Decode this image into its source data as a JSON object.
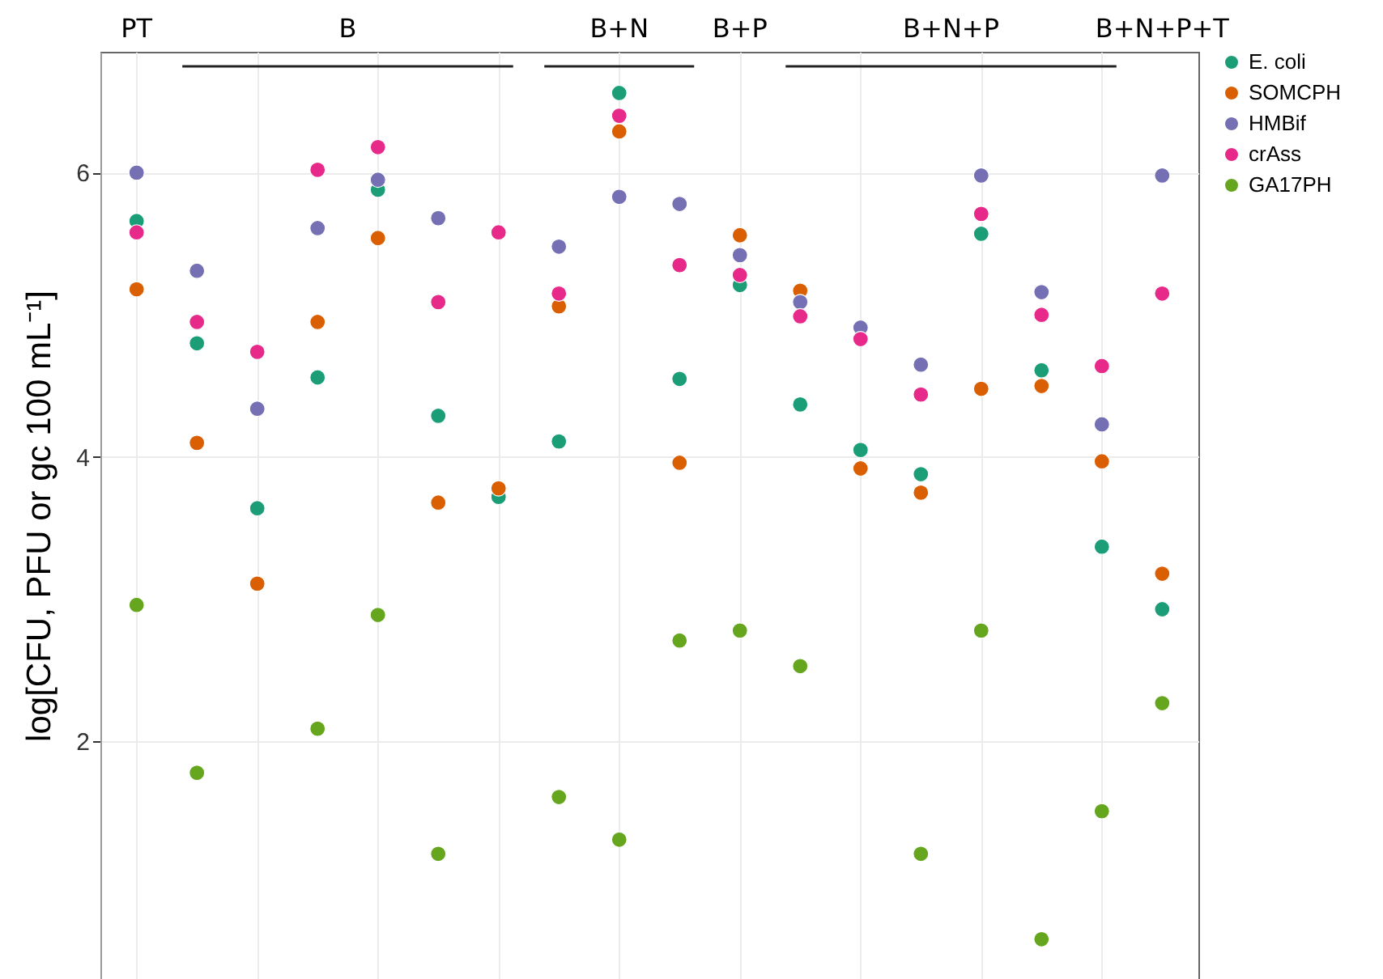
{
  "chart_data": {
    "type": "scatter",
    "ylabel": "log[CFU, PFU or gc 100 mL⁻¹]",
    "categories": [
      null,
      null,
      null,
      null,
      null,
      null,
      null,
      null,
      null,
      null,
      null,
      null,
      null,
      null,
      null,
      null,
      null,
      null
    ],
    "series": [
      {
        "name": "E. coli",
        "color": "#1b9e77",
        "values": [
          5.66,
          4.8,
          3.64,
          4.56,
          5.88,
          4.29,
          3.72,
          4.11,
          6.56,
          4.55,
          5.21,
          4.37,
          4.05,
          3.88,
          5.57,
          4.61,
          3.37,
          2.93
        ]
      },
      {
        "name": "SOMCPH",
        "color": "#d95f02",
        "values": [
          5.18,
          4.1,
          3.11,
          4.95,
          5.54,
          3.68,
          3.78,
          5.06,
          6.29,
          3.96,
          5.56,
          5.17,
          3.92,
          3.75,
          4.48,
          4.5,
          3.97,
          3.18
        ]
      },
      {
        "name": "HMBif",
        "color": "#7570b3",
        "values": [
          6.0,
          5.31,
          4.34,
          5.61,
          5.95,
          5.68,
          null,
          5.48,
          5.83,
          5.78,
          5.42,
          5.09,
          4.91,
          4.65,
          5.98,
          5.16,
          4.23,
          5.98
        ]
      },
      {
        "name": "crAss",
        "color": "#e7298a",
        "values": [
          5.58,
          4.95,
          4.74,
          6.02,
          6.18,
          5.09,
          5.58,
          5.15,
          6.4,
          5.35,
          5.28,
          4.99,
          4.83,
          4.44,
          5.71,
          5.0,
          4.64,
          5.15
        ]
      },
      {
        "name": "GA17PH",
        "color": "#66a61e",
        "values": [
          2.96,
          1.78,
          null,
          2.09,
          2.89,
          1.21,
          null,
          1.61,
          1.31,
          2.71,
          2.78,
          2.53,
          null,
          1.21,
          2.78,
          0.61,
          1.51,
          2.27
        ]
      }
    ],
    "annotations": [
      "PT",
      "B",
      "B+N",
      "B+P",
      "B+N+P",
      "B+N+P+T"
    ],
    "ylim": [
      0.33,
      6.85
    ],
    "yticks": [
      2,
      4,
      6
    ],
    "grid": true,
    "legend": "right",
    "marker": "circle",
    "tick_labels": "y"
  }
}
